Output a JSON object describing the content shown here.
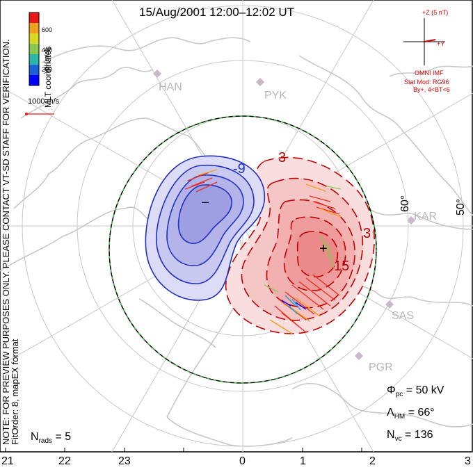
{
  "title": "15/Aug/2001 12:00–12:02 UT",
  "side_note": {
    "line1": "NOTE: FOR PREVIEW PURPOSES ONLY. PLEASE CONTACT VT-SD STAFF FOR VERIFICATION.",
    "line2": "FitOrder: 8, mapEX format"
  },
  "legend": {
    "coords": "MLT coordinates",
    "vel_label": "Vel [m/s]",
    "ticks": [
      "600",
      "400",
      "200"
    ],
    "colors": [
      "#0000ff",
      "#1ea0d8",
      "#2ab8a8",
      "#88c850",
      "#d8d820",
      "#f0a020",
      "#f06018",
      "#e81818"
    ],
    "vector_ref": "1000 m/s"
  },
  "imf": {
    "z_label": "+Z (5 nT)",
    "y_label": "+Y",
    "source": "OMNI IMF",
    "model": "Stat Mod: RG96",
    "bin": "By+, 4<BT<6",
    "color": "#d00000"
  },
  "mlt_labels": [
    "21",
    "22",
    "23",
    "0",
    "1",
    "2",
    "3"
  ],
  "lat_labels": [
    "60°",
    "50°"
  ],
  "sites": [
    "HAN",
    "PYK",
    "KAR",
    "SAS",
    "PGR"
  ],
  "contours": {
    "pos_label_top": "3",
    "neg_label": "-9",
    "pos_label_right": "3",
    "pos_label_center": "15",
    "min_marker": "–",
    "max_marker": "+",
    "neg_color": "#2030c0",
    "pos_color": "#c00000",
    "boundary_color": "#40c040"
  },
  "stats": {
    "n_rads": "N",
    "n_rads_sub": "rads",
    "n_rads_val": " = 5",
    "phi": "Φ",
    "phi_sub": "pc",
    "phi_val": " = 50 kV",
    "lambda": "Λ",
    "lambda_sub": "HM",
    "lambda_val": " = 66°",
    "nvc": "N",
    "nvc_sub": "vc",
    "nvc_val": " = 136"
  }
}
